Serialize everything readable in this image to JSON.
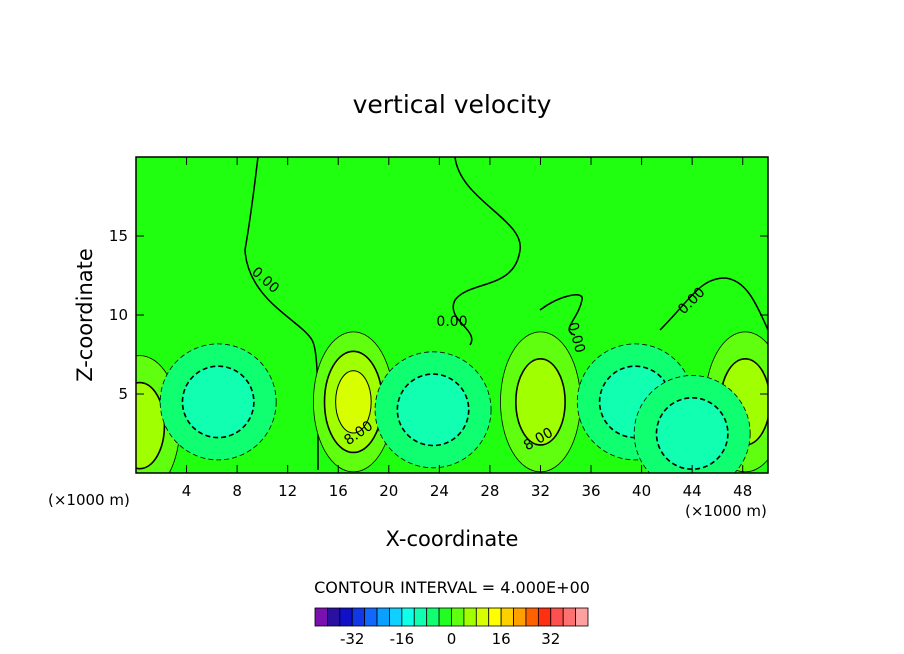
{
  "chart_data": {
    "type": "heatmap",
    "title": "vertical velocity",
    "xlabel": "X-coordinate",
    "ylabel": "Z-coordinate",
    "x_unit_left": "(×1000 m)",
    "x_unit_right": "(×1000 m)",
    "xlim": [
      0,
      50
    ],
    "ylim": [
      0,
      20
    ],
    "x_ticks": [
      4,
      8,
      12,
      16,
      20,
      24,
      28,
      32,
      36,
      40,
      44,
      48
    ],
    "y_ticks": [
      5,
      10,
      15
    ],
    "contour_interval_text": "CONTOUR INTERVAL = 4.000E+00",
    "contour_interval": 4,
    "contour_labels": [
      {
        "text": "0.00",
        "x": 10.0,
        "z": 12.0,
        "angle": 42
      },
      {
        "text": "0.00",
        "x": 25.0,
        "z": 9.3,
        "angle": 0
      },
      {
        "text": "0.00",
        "x": 34.5,
        "z": 8.5,
        "angle": 75
      },
      {
        "text": "0.00",
        "x": 44.2,
        "z": 10.7,
        "angle": -45
      },
      {
        "text": "8.00",
        "x": 17.8,
        "z": 2.3,
        "angle": -35
      },
      {
        "text": "8.00",
        "x": 32.0,
        "z": 1.9,
        "angle": -30
      }
    ],
    "field_features": [
      {
        "kind": "updraft",
        "x": 17.2,
        "z": 4.5,
        "peak": 13
      },
      {
        "kind": "updraft",
        "x": 32.0,
        "z": 4.5,
        "peak": 10
      },
      {
        "kind": "updraft",
        "x": 48.2,
        "z": 4.5,
        "peak": 10
      },
      {
        "kind": "updraft",
        "x": 0.3,
        "z": 3.0,
        "peak": 8
      },
      {
        "kind": "downdraft",
        "x": 6.5,
        "z": 4.5,
        "peak": -10
      },
      {
        "kind": "downdraft",
        "x": 23.5,
        "z": 4.0,
        "peak": -8
      },
      {
        "kind": "downdraft",
        "x": 39.5,
        "z": 4.5,
        "peak": -9
      },
      {
        "kind": "downdraft",
        "x": 44.0,
        "z": 2.5,
        "peak": -9
      }
    ],
    "colorbar": {
      "ticks": [
        "-32",
        "-16",
        "0",
        "16",
        "32"
      ],
      "tick_values": [
        -32,
        -16,
        0,
        16,
        32
      ],
      "colors": [
        "#7a10b0",
        "#2a10a0",
        "#1010c8",
        "#1038e8",
        "#1068ff",
        "#0aa0ff",
        "#10d0ff",
        "#10ffe8",
        "#10ffb0",
        "#10ff70",
        "#20ff20",
        "#60ff10",
        "#a0ff00",
        "#d8ff00",
        "#ffff00",
        "#ffd000",
        "#ffa000",
        "#ff6000",
        "#ff3010",
        "#ff5050",
        "#ff7070",
        "#ffa0a0"
      ]
    }
  }
}
